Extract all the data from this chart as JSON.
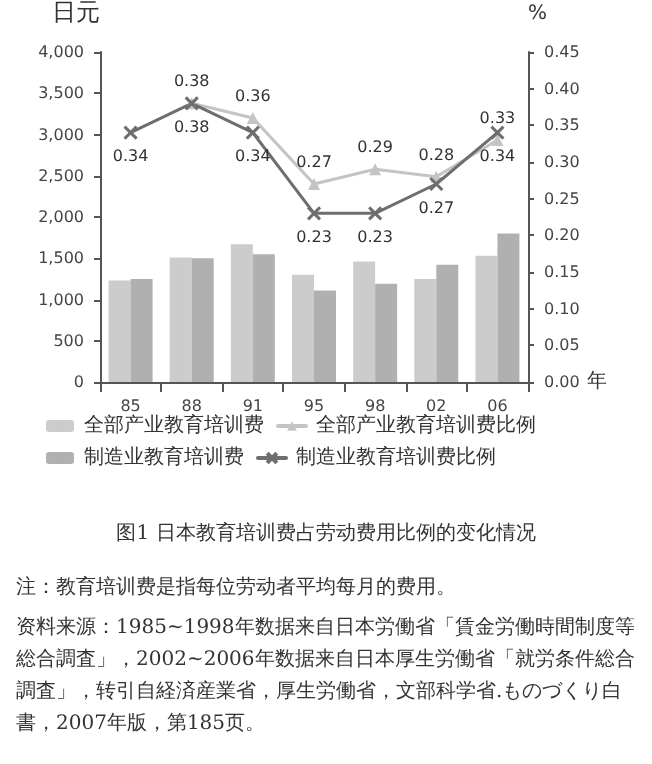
{
  "chart_data": {
    "type": "bar",
    "title": "图1 日本教育培训费占劳动费用比例的变化情况",
    "ylabel": "日元",
    "y2label": "%",
    "xlabel": "年",
    "categories": [
      "85",
      "88",
      "91",
      "95",
      "98",
      "02",
      "06"
    ],
    "series": [
      {
        "name": "全部产业教育培训费",
        "color": "#cccccc",
        "values": [
          1230,
          1510,
          1670,
          1300,
          1460,
          1250,
          1530
        ]
      },
      {
        "name": "全部产业教育培训费比例",
        "type": "line",
        "axis": "y2",
        "marker": "triangle",
        "color": "#c4c4c4",
        "values": [
          null,
          0.38,
          0.36,
          0.27,
          0.29,
          0.28,
          0.33
        ],
        "value_labels": [
          null,
          "0.38",
          "0.36",
          "0.27",
          "0.29",
          "0.28",
          "0.33"
        ]
      },
      {
        "name": "制造业教育培训费",
        "color": "#b0b0b0",
        "values": [
          1250,
          1500,
          1550,
          1110,
          1190,
          1420,
          1800
        ]
      },
      {
        "name": "制造业教育培训费比例",
        "type": "line",
        "axis": "y2",
        "marker": "cross",
        "color": "#6e6e6e",
        "values": [
          0.34,
          0.38,
          0.34,
          0.23,
          0.23,
          0.27,
          0.34
        ],
        "value_labels": [
          "0.34",
          "0.38",
          "0.34",
          "0.23",
          "0.23",
          "0.27",
          "0.34"
        ]
      }
    ],
    "ylim": [
      0,
      4000
    ],
    "yticks": [
      0,
      500,
      {
        "value": 1000,
        "label": "1,000"
      },
      {
        "value": 1500,
        "label": "1,500"
      },
      {
        "value": 2000,
        "label": "2,000"
      },
      {
        "value": 2500,
        "label": "2,500"
      },
      {
        "value": 3000,
        "label": "3,000"
      },
      {
        "value": 3500,
        "label": "3,500"
      },
      {
        "value": 4000,
        "label": "4,000"
      }
    ],
    "y2lim": [
      0,
      0.45
    ],
    "y2ticks": [
      {
        "value": 0,
        "label": "0.00"
      },
      {
        "value": 0.05,
        "label": "0.05"
      },
      {
        "value": 0.1,
        "label": "0.10"
      },
      {
        "value": 0.15,
        "label": "0.15"
      },
      {
        "value": 0.2,
        "label": "0.20"
      },
      {
        "value": 0.25,
        "label": "0.25"
      },
      {
        "value": 0.3,
        "label": "0.30"
      },
      {
        "value": 0.35,
        "label": "0.35"
      },
      {
        "value": 0.4,
        "label": "0.40"
      },
      {
        "value": 0.45,
        "label": "0.45"
      }
    ],
    "grid": false,
    "legend": "bottom",
    "annotations": [
      "注：教育培训费是指每位劳动者平均每月的费用。",
      "资料来源：1985~1998年数据来自日本労働省「賃金労働時間制度等総合調査」，2002~2006年数据来自日本厚生労働省「就労条件総合調査」，转引自経済産業省，厚生労働省，文部科学省.ものづくり白書，2007年版，第185页。"
    ]
  }
}
